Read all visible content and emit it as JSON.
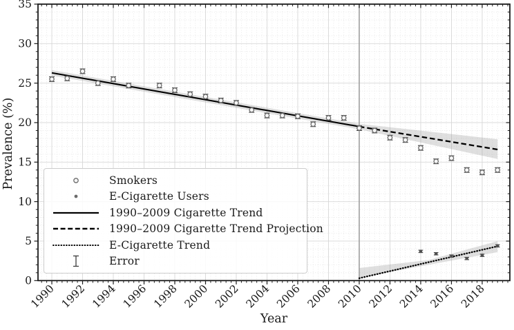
{
  "figure": {
    "background": "#ffffff"
  },
  "chart_data": {
    "type": "line",
    "title": "",
    "xlabel": "Year",
    "ylabel": "Prevalence (%)",
    "xlim": [
      1989.1,
      2019.8
    ],
    "ylim": [
      0,
      35
    ],
    "xticks": [
      1990,
      1992,
      1994,
      1996,
      1998,
      2000,
      2002,
      2004,
      2006,
      2008,
      2010,
      2012,
      2014,
      2016,
      2018
    ],
    "yticks": [
      0,
      5,
      10,
      15,
      20,
      25,
      30,
      35
    ],
    "x_minor_step": 0.3333,
    "y_minor_step": 1,
    "grid": "major-solid, minor-dotted",
    "legend_position": "lower-left",
    "vline_year": 2010,
    "series": [
      {
        "name": "Smokers",
        "type": "scatter",
        "marker": "open-circle",
        "yerr": 0.3,
        "x": [
          1990,
          1991,
          1992,
          1993,
          1994,
          1995,
          1997,
          1998,
          1999,
          2000,
          2001,
          2002,
          2003,
          2004,
          2005,
          2006,
          2007,
          2008,
          2009,
          2010,
          2011,
          2012,
          2013,
          2014,
          2015,
          2016,
          2017,
          2018,
          2019
        ],
        "y": [
          25.5,
          25.6,
          26.5,
          25.0,
          25.5,
          24.7,
          24.7,
          24.1,
          23.6,
          23.3,
          22.8,
          22.5,
          21.6,
          20.9,
          20.9,
          20.8,
          19.8,
          20.6,
          20.6,
          19.3,
          19.0,
          18.1,
          17.8,
          16.8,
          15.1,
          15.5,
          14.0,
          13.7,
          14.0
        ]
      },
      {
        "name": "E-Cigarette Users",
        "type": "scatter",
        "marker": "filled-dot",
        "yerr": 0.15,
        "x": [
          2014,
          2015,
          2016,
          2017,
          2018,
          2019
        ],
        "y": [
          3.7,
          3.4,
          3.1,
          2.8,
          3.2,
          4.4
        ]
      },
      {
        "name": "1990–2009 Cigarette Trend",
        "type": "line",
        "style": "solid",
        "x": [
          1990,
          2010
        ],
        "y": [
          26.3,
          19.5
        ],
        "band": {
          "x": [
            1990,
            2010
          ],
          "top": [
            26.65,
            19.85
          ],
          "bottom": [
            25.95,
            19.15
          ]
        }
      },
      {
        "name": "1990–2009 Cigarette Trend Projection",
        "type": "line",
        "style": "dashed",
        "x": [
          2010,
          2019
        ],
        "y": [
          19.5,
          16.6
        ],
        "band": {
          "x": [
            2010,
            2019
          ],
          "top": [
            19.85,
            17.9
          ],
          "bottom": [
            19.15,
            15.4
          ]
        }
      },
      {
        "name": "E-Cigarette Trend",
        "type": "line",
        "style": "dotted",
        "x": [
          2010,
          2019
        ],
        "y": [
          0.3,
          4.35
        ],
        "band": {
          "x": [
            2010,
            2014.5,
            2019
          ],
          "top": [
            1.6,
            2.6,
            5.0
          ],
          "bottom": [
            0.35,
            2.0,
            3.6
          ]
        }
      }
    ],
    "colors": {
      "trend_line": "#000000",
      "marker_edge": "#6b6b6b",
      "marker_fill": "#f6f6f6",
      "dot_fill": "#4f4f4f",
      "error_bar": "#3c3c3c",
      "band_fill": "rgba(150,150,150,0.30)",
      "grid_major": "#d7d7d7",
      "grid_minor": "#e2e2e2",
      "vline": "#9e9e9e",
      "spine": "#1a1a1a",
      "tick_label": "#1a1a1a"
    }
  },
  "legend": {
    "items": [
      {
        "label": "Smokers"
      },
      {
        "label": "E-Cigarette Users"
      },
      {
        "label": "1990–2009 Cigarette Trend"
      },
      {
        "label": "1990–2009 Cigarette Trend Projection"
      },
      {
        "label": "E-Cigarette Trend"
      },
      {
        "label": "Error"
      }
    ]
  }
}
